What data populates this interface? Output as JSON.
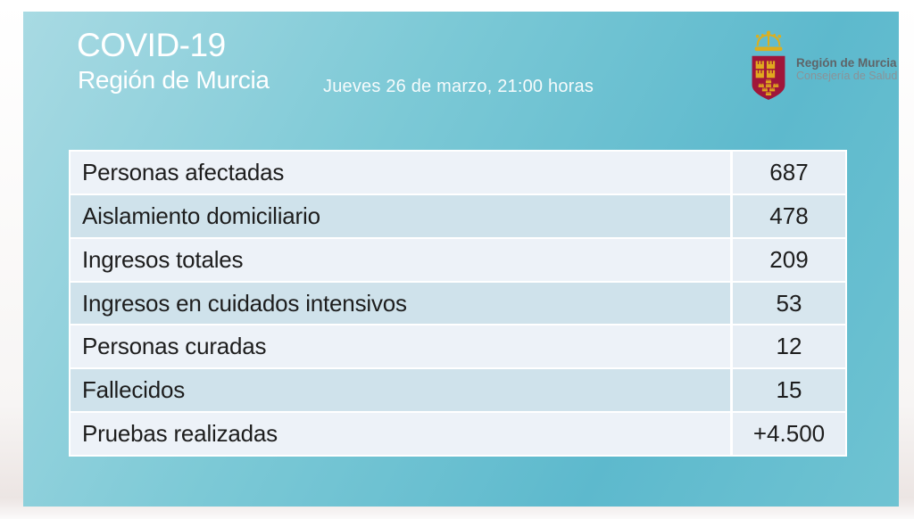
{
  "header": {
    "title": "COVID-19",
    "subtitle": "Región de Murcia",
    "datetime": "Jueves 26 de marzo, 21:00 horas"
  },
  "logo": {
    "org": "Región de Murcia",
    "dept": "Consejería de Salud",
    "crown_icon": "royal-crown-icon",
    "shield_icon": "murcia-coat-of-arms-icon"
  },
  "table": {
    "rows": [
      {
        "label": "Personas afectadas",
        "value": "687"
      },
      {
        "label": "Aislamiento domiciliario",
        "value": "478"
      },
      {
        "label": "Ingresos totales",
        "value": "209"
      },
      {
        "label": "Ingresos en cuidados intensivos",
        "value": "53"
      },
      {
        "label": "Personas curadas",
        "value": "12"
      },
      {
        "label": "Fallecidos",
        "value": "15"
      },
      {
        "label": "Pruebas realizadas",
        "value": "+4.500"
      }
    ]
  },
  "colors": {
    "card_gradient_1": "#a8dae3",
    "card_gradient_2": "#7cc9d6",
    "card_gradient_3": "#5db9cd",
    "card_gradient_4": "#6fc3d2",
    "row_light": "#edf2f8",
    "row_light_value": "#e7eef5",
    "row_blue": "#cfe2eb",
    "row_blue_value": "#d7e6ee",
    "shield_red": "#a0163a",
    "crown_gold": "#dcaf1e",
    "title_text": "#ffffff",
    "table_text": "#1d1d1d"
  }
}
